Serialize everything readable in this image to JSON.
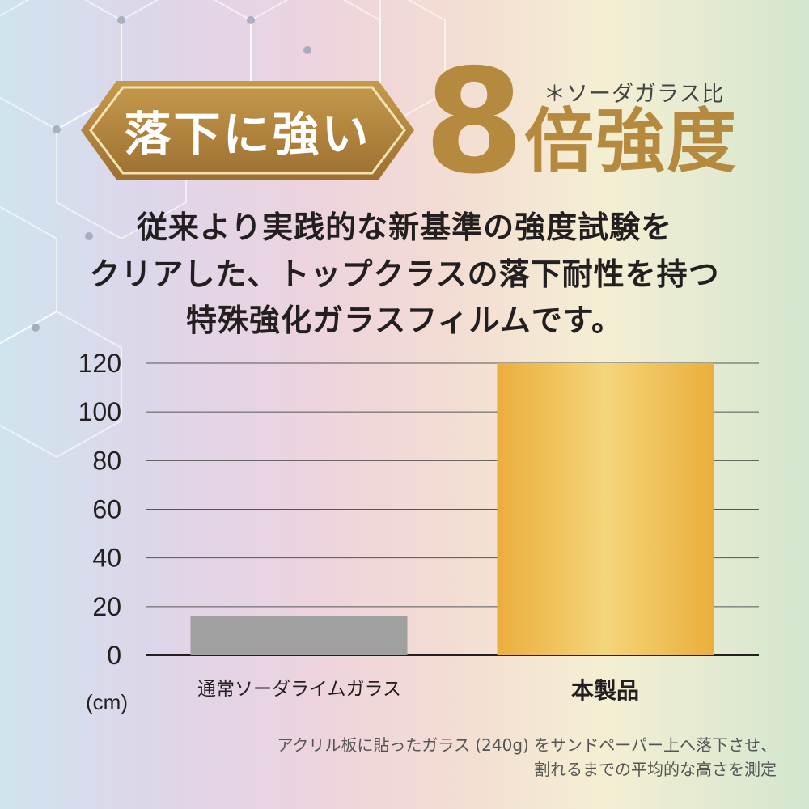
{
  "badge": {
    "label": "落下に強い"
  },
  "headline": {
    "number": "8",
    "suffix": "倍強度",
    "note": "＊ソーダガラス比"
  },
  "description": [
    "従来より実践的な新基準の強度試験を",
    "クリアした、トップクラスの落下耐性を持つ",
    "特殊強化ガラスフィルムです。"
  ],
  "chart_data": {
    "type": "bar",
    "categories": [
      "通常ソーダライムガラス",
      "本製品"
    ],
    "values": [
      16,
      120
    ],
    "yticks": [
      "0",
      "20",
      "40",
      "60",
      "80",
      "100",
      "120"
    ],
    "ylim": [
      0,
      120
    ],
    "yunit": "(cm)",
    "grid": true,
    "colors": {
      "bar_a": "#a0a0a0",
      "bar_b": "#eec15a",
      "accent": "#b58a3e"
    }
  },
  "footnote": [
    "アクリル板に貼ったガラス (240g) をサンドペーパー上へ落下させ、",
    "割れるまでの平均的な高さを測定"
  ]
}
